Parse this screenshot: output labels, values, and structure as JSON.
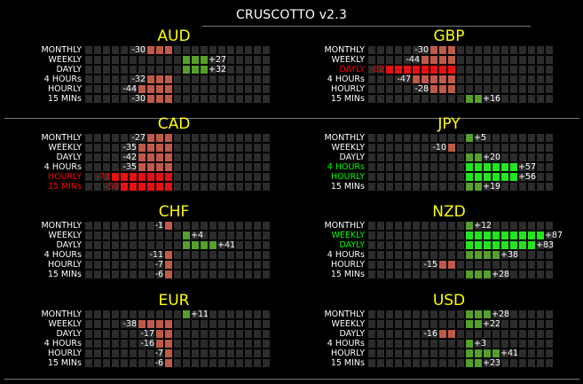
{
  "title": "CRUSCOTTO v2.3",
  "colors": {
    "empty": "#2c2c2c",
    "neg": "#c05a48",
    "pos": "#55a02a",
    "neg_hot": "#e81010",
    "pos_hot": "#22e61e",
    "label": "#ffffff",
    "label_red": "#ff0000",
    "label_green": "#00ff00",
    "currency": "#ffff00"
  },
  "currencies": [
    {
      "name": "AUD",
      "rows": [
        {
          "label": "MONTHLY",
          "value": -30,
          "display": "-30",
          "highlight": "none"
        },
        {
          "label": "WEEKLY",
          "value": 27,
          "display": "+27",
          "highlight": "none"
        },
        {
          "label": "DAYLY",
          "value": 32,
          "display": "+32",
          "highlight": "none"
        },
        {
          "label": "4 HOURs",
          "value": -32,
          "display": "-32",
          "highlight": "none"
        },
        {
          "label": "HOURLY",
          "value": -44,
          "display": "-44",
          "highlight": "none"
        },
        {
          "label": "15 MINs",
          "value": -30,
          "display": "-30",
          "highlight": "none"
        }
      ]
    },
    {
      "name": "GBP",
      "rows": [
        {
          "label": "MONTHLY",
          "value": -30,
          "display": "-30",
          "highlight": "none"
        },
        {
          "label": "WEEKLY",
          "value": -44,
          "display": "-44",
          "highlight": "none"
        },
        {
          "label": "DAYLY",
          "value": -82,
          "display": "-82",
          "highlight": "red"
        },
        {
          "label": "4 HOURs",
          "value": -47,
          "display": "-47",
          "highlight": "none"
        },
        {
          "label": "HOURLY",
          "value": -28,
          "display": "-28",
          "highlight": "none"
        },
        {
          "label": "15 MINs",
          "value": 16,
          "display": "+16",
          "highlight": "none"
        }
      ]
    },
    {
      "name": "CAD",
      "rows": [
        {
          "label": "MONTHLY",
          "value": -27,
          "display": "-27",
          "highlight": "none"
        },
        {
          "label": "WEEKLY",
          "value": -35,
          "display": "-35",
          "highlight": "none"
        },
        {
          "label": "DAYLY",
          "value": -42,
          "display": "-42",
          "highlight": "none"
        },
        {
          "label": "4 HOURs",
          "value": -35,
          "display": "-35",
          "highlight": "none"
        },
        {
          "label": "HOURLY",
          "value": -73,
          "display": "-73",
          "highlight": "red"
        },
        {
          "label": "15 MINs",
          "value": -59,
          "display": "-59",
          "highlight": "red"
        }
      ]
    },
    {
      "name": "JPY",
      "rows": [
        {
          "label": "MONTHLY",
          "value": 5,
          "display": "+5",
          "highlight": "none"
        },
        {
          "label": "WEEKLY",
          "value": -10,
          "display": "-10",
          "highlight": "none"
        },
        {
          "label": "DAYLY",
          "value": 20,
          "display": "+20",
          "highlight": "none"
        },
        {
          "label": "4 HOURs",
          "value": 57,
          "display": "+57",
          "highlight": "green"
        },
        {
          "label": "HOURLY",
          "value": 56,
          "display": "+56",
          "highlight": "green"
        },
        {
          "label": "15 MINs",
          "value": 19,
          "display": "+19",
          "highlight": "none"
        }
      ]
    },
    {
      "name": "CHF",
      "rows": [
        {
          "label": "MONTHLY",
          "value": -1,
          "display": "-1",
          "highlight": "none"
        },
        {
          "label": "WEEKLY",
          "value": 4,
          "display": "+4",
          "highlight": "none"
        },
        {
          "label": "DAYLY",
          "value": 41,
          "display": "+41",
          "highlight": "none"
        },
        {
          "label": "4 HOURs",
          "value": -11,
          "display": "-11",
          "highlight": "none"
        },
        {
          "label": "HOURLY",
          "value": -7,
          "display": "-7",
          "highlight": "none"
        },
        {
          "label": "15 MINs",
          "value": -6,
          "display": "-6",
          "highlight": "none"
        }
      ]
    },
    {
      "name": "NZD",
      "rows": [
        {
          "label": "MONTHLY",
          "value": 12,
          "display": "+12",
          "highlight": "none"
        },
        {
          "label": "WEEKLY",
          "value": 87,
          "display": "+87",
          "highlight": "green"
        },
        {
          "label": "DAYLY",
          "value": 83,
          "display": "+83",
          "highlight": "green"
        },
        {
          "label": "4 HOURs",
          "value": 38,
          "display": "+38",
          "highlight": "none"
        },
        {
          "label": "HOURLY",
          "value": -15,
          "display": "-15",
          "highlight": "none"
        },
        {
          "label": "15 MINs",
          "value": 28,
          "display": "+28",
          "highlight": "none"
        }
      ]
    },
    {
      "name": "EUR",
      "rows": [
        {
          "label": "MONTHLY",
          "value": 11,
          "display": "+11",
          "highlight": "none"
        },
        {
          "label": "WEEKLY",
          "value": -38,
          "display": "-38",
          "highlight": "none"
        },
        {
          "label": "DAYLY",
          "value": -17,
          "display": "-17",
          "highlight": "none"
        },
        {
          "label": "4 HOURs",
          "value": -16,
          "display": "-16",
          "highlight": "none"
        },
        {
          "label": "HOURLY",
          "value": -7,
          "display": "-7",
          "highlight": "none"
        },
        {
          "label": "15 MINs",
          "value": -6,
          "display": "-6",
          "highlight": "none"
        }
      ]
    },
    {
      "name": "USD",
      "rows": [
        {
          "label": "MONTHLY",
          "value": 28,
          "display": "+28",
          "highlight": "none"
        },
        {
          "label": "WEEKLY",
          "value": 22,
          "display": "+22",
          "highlight": "none"
        },
        {
          "label": "DAYLY",
          "value": -16,
          "display": "-16",
          "highlight": "none"
        },
        {
          "label": "4 HOURs",
          "value": 3,
          "display": "+3",
          "highlight": "none"
        },
        {
          "label": "HOURLY",
          "value": 41,
          "display": "+41",
          "highlight": "none"
        },
        {
          "label": "15 MINs",
          "value": 23,
          "display": "+23",
          "highlight": "none"
        }
      ]
    }
  ]
}
